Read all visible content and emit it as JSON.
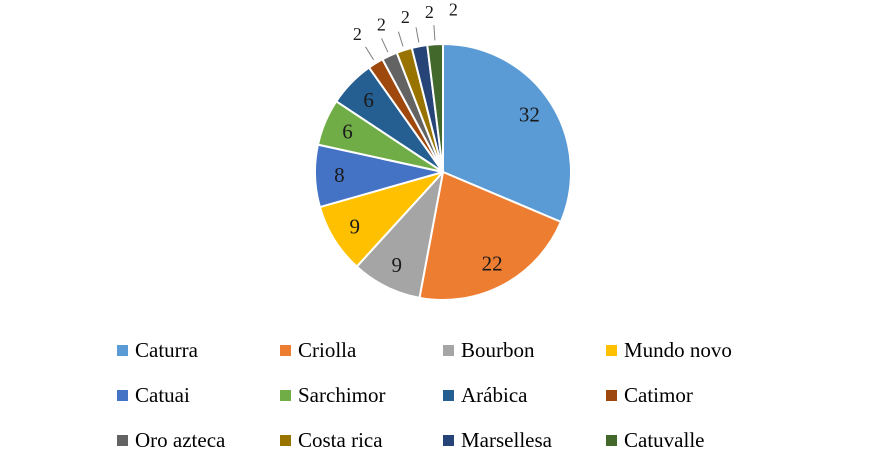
{
  "chart_data": {
    "type": "pie",
    "title": "",
    "categories": [
      "Caturra",
      "Criolla",
      "Bourbon",
      "Mundo novo",
      "Catuai",
      "Sarchimor",
      "Arábica",
      "Catimor",
      "Oro azteca",
      "Costa rica",
      "Marsellesa",
      "Catuvalle"
    ],
    "values": [
      32,
      22,
      9,
      9,
      8,
      6,
      6,
      2,
      2,
      2,
      2,
      2
    ],
    "colors": [
      "#5B9BD5",
      "#ED7D31",
      "#A5A5A5",
      "#FFC000",
      "#4472C4",
      "#70AD47",
      "#255E91",
      "#9E480E",
      "#636363",
      "#997300",
      "#264478",
      "#43682B"
    ],
    "data_labels": "values",
    "start_angle_deg": 0,
    "direction": "clockwise",
    "slice_border_color": "#FFFFFF",
    "legend_position": "bottom",
    "legend_columns": 4,
    "legend_rows": [
      [
        "Caturra",
        "Criolla",
        "Bourbon",
        "Mundo novo"
      ],
      [
        "Catuai",
        "Sarchimor",
        "Arábica",
        "Catimor"
      ],
      [
        "Oro azteca",
        "Costa rica",
        "Marsellesa",
        "Catuvalle"
      ]
    ]
  }
}
